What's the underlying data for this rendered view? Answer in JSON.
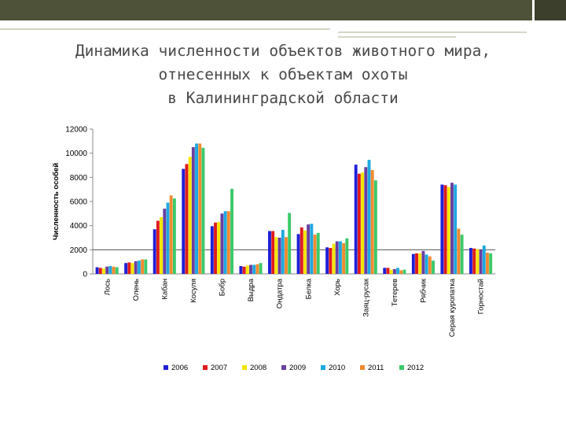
{
  "slide": {
    "title_lines": [
      "Динамика численности объектов животного мира,",
      "отнесенных к объектам охоты",
      "в Калининградской области"
    ],
    "colors": {
      "topbar": "#4d5238",
      "title": "#4a4a4a"
    }
  },
  "chart_data": {
    "type": "bar",
    "ylabel": "Численность особей",
    "ylim": [
      0,
      12000
    ],
    "yticks": [
      0,
      2000,
      4000,
      6000,
      8000,
      10000,
      12000
    ],
    "grid": false,
    "legend_position": "bottom",
    "categories": [
      "Лось",
      "Олень",
      "Кабан",
      "Косуля",
      "Бобр",
      "Выдра",
      "Ондатра",
      "Белка",
      "Хорь",
      "Заяц-русак",
      "Тетерев",
      "Рябчик",
      "Серая куропатка",
      "Горностай"
    ],
    "series": [
      {
        "name": "2006",
        "color": "#1f1fd6",
        "values": [
          550,
          900,
          3700,
          8700,
          3950,
          650,
          3550,
          3300,
          2200,
          9050,
          500,
          1650,
          7400,
          2150
        ]
      },
      {
        "name": "2007",
        "color": "#e01a1a",
        "values": [
          500,
          950,
          4400,
          9100,
          4250,
          600,
          3550,
          3850,
          2150,
          8300,
          500,
          1700,
          7350,
          2100
        ]
      },
      {
        "name": "2008",
        "color": "#f2e600",
        "values": [
          450,
          900,
          4700,
          9700,
          4300,
          700,
          3050,
          3600,
          2500,
          8400,
          350,
          1700,
          7200,
          2050
        ]
      },
      {
        "name": "2009",
        "color": "#6a3fa0",
        "values": [
          600,
          1050,
          5400,
          10500,
          5000,
          750,
          3000,
          4100,
          2700,
          8850,
          400,
          1900,
          7550,
          2000
        ]
      },
      {
        "name": "2010",
        "color": "#1da8e0",
        "values": [
          650,
          1100,
          5900,
          10800,
          5200,
          750,
          3650,
          4150,
          2700,
          9450,
          500,
          1600,
          7400,
          2350
        ]
      },
      {
        "name": "2011",
        "color": "#f08a30",
        "values": [
          600,
          1200,
          6500,
          10800,
          5200,
          800,
          3050,
          3250,
          2550,
          8600,
          300,
          1450,
          3750,
          1750
        ]
      },
      {
        "name": "2012",
        "color": "#3cc96a",
        "values": [
          550,
          1200,
          6250,
          10450,
          7050,
          900,
          5050,
          3400,
          2950,
          7750,
          350,
          1100,
          3250,
          1700
        ]
      }
    ]
  }
}
